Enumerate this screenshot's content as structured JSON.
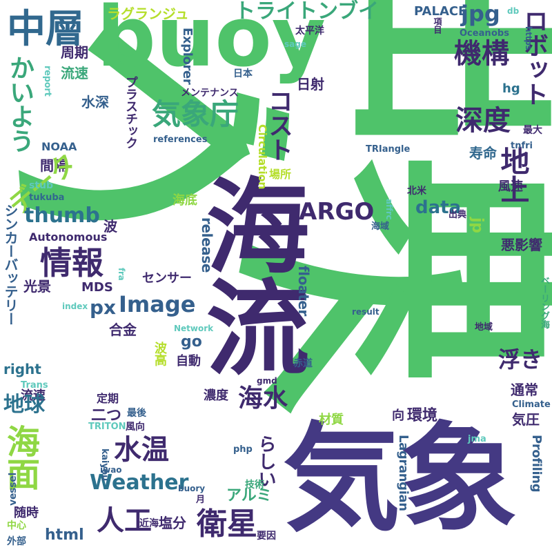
{
  "words": {
    "w_ブイ": {
      "text": "ブイ",
      "color": "#4fc36a",
      "rotate": 45
    },
    "w_海流": {
      "text": "海流",
      "color": "#3f2a6e",
      "rotate": 90
    },
    "w_出典": {
      "text": "出典",
      "color": "#4fc36a"
    },
    "w_気象": {
      "text": "気象",
      "color": "#443983"
    },
    "w_buoy": {
      "text": "buoy",
      "color": "#4fc36a"
    },
    "w_中層": {
      "text": "中層",
      "color": "#31688e"
    },
    "w_かいよう": {
      "text": "かいよう",
      "color": "#3aa77a"
    },
    "w_周期": {
      "text": "周期",
      "color": "#3f2a6e"
    },
    "w_流速": {
      "text": "流速",
      "color": "#3aa77a"
    },
    "w_report": {
      "text": "report",
      "color": "#5fc9bc"
    },
    "w_水深": {
      "text": "水深",
      "color": "#35608d"
    },
    "w_NOAA": {
      "text": "NOAA",
      "color": "#35608d"
    },
    "w_間隔": {
      "text": "間隔",
      "color": "#3f2a6e"
    },
    "w_データ": {
      "text": "データ",
      "color": "#8fd744"
    },
    "w_stub": {
      "text": "stub",
      "color": "#5fc9bc"
    },
    "w_tukuba": {
      "text": "tukuba",
      "color": "#31688e"
    },
    "w_シンカーバッテリー": {
      "text": "シンカーバッテリー",
      "color": "#35608d"
    },
    "w_海底": {
      "text": "海底",
      "color": "#8fd744"
    },
    "w_thumb": {
      "text": "thumb",
      "color": "#2c728e"
    },
    "w_Autonomous": {
      "text": "Autonomous",
      "color": "#3f2a6e"
    },
    "w_情報": {
      "text": "情報",
      "color": "#3f2a6e"
    },
    "w_光景": {
      "text": "光景",
      "color": "#3f2a6e"
    },
    "w_MDS": {
      "text": "MDS",
      "color": "#3f2a6e"
    },
    "w_px": {
      "text": "px",
      "color": "#35608d"
    },
    "w_index": {
      "text": "index",
      "color": "#5fc9bc"
    },
    "w_合金": {
      "text": "合金",
      "color": "#3f2a6e"
    },
    "w_right": {
      "text": "right",
      "color": "#2c728e"
    },
    "w_Trans": {
      "text": "Trans",
      "color": "#5fc9bc"
    },
    "w_流速2": {
      "text": "流速",
      "color": "#3f2a6e"
    },
    "w_地球": {
      "text": "地球",
      "color": "#2c728e"
    },
    "w_二つ": {
      "text": "二つ",
      "color": "#3f2a6e"
    },
    "w_定期": {
      "text": "定期",
      "color": "#3f2a6e"
    },
    "w_海面": {
      "text": "海面",
      "color": "#8fd744"
    },
    "w_TRITON": {
      "text": "TRITON",
      "color": "#5fc9bc"
    },
    "w_最後": {
      "text": "最後",
      "color": "#35608d"
    },
    "w_風向": {
      "text": "風向",
      "color": "#3f2a6e"
    },
    "w_水温": {
      "text": "水温",
      "color": "#3f2a6e"
    },
    "w_Weather": {
      "text": "Weather",
      "color": "#2c728e"
    },
    "w_vessel": {
      "text": "vessel",
      "color": "#35608d"
    },
    "w_kaiyou": {
      "text": "kaiyou",
      "color": "#35608d"
    },
    "w_iwao": {
      "text": "iwao",
      "color": "#35608d"
    },
    "w_随時": {
      "text": "随時",
      "color": "#3f2a6e"
    },
    "w_中心": {
      "text": "中心",
      "color": "#8fd744"
    },
    "w_外部": {
      "text": "外部",
      "color": "#35608d"
    },
    "w_人工": {
      "text": "人工",
      "color": "#3f2a6e"
    },
    "w_近海": {
      "text": "近海",
      "color": "#3f2a6e"
    },
    "w_塩分": {
      "text": "塩分",
      "color": "#3f2a6e"
    },
    "w_html": {
      "text": "html",
      "color": "#35608d"
    },
    "w_衛星": {
      "text": "衛星",
      "color": "#3f2a6e"
    },
    "w_アルミ": {
      "text": "アルミ",
      "color": "#3aa77a"
    },
    "w_ラグランジュ": {
      "text": "ラグランジュ",
      "color": "#b5de2b"
    },
    "w_トライトンブイ": {
      "text": "トライトンブイ",
      "color": "#3aa77a"
    },
    "w_PALACE": {
      "text": "PALACE",
      "color": "#35608d"
    },
    "w_jpg": {
      "text": "jpg",
      "color": "#35608d"
    },
    "w_db": {
      "text": "db",
      "color": "#5fc9bc"
    },
    "w_機構": {
      "text": "機構",
      "color": "#3f2a6e"
    },
    "w_地上": {
      "text": "地上",
      "color": "#3f2a6e"
    },
    "w_ロボット": {
      "text": "ロボット",
      "color": "#3f2a6e"
    },
    "w_Ocean": {
      "text": "Ocean",
      "color": "#35608d"
    },
    "w_obs": {
      "text": "obs",
      "color": "#35608d"
    },
    "w_https": {
      "text": "https",
      "color": "#35608d"
    },
    "w_項目": {
      "text": "項目",
      "color": "#3f2a6e"
    },
    "w_太平洋": {
      "text": "太平洋",
      "color": "#3f2a6e"
    },
    "w_sage": {
      "text": "sage",
      "color": "#5fc9bc"
    },
    "w_日本": {
      "text": "日本",
      "color": "#35608d"
    },
    "w_Explorer": {
      "text": "Explorer",
      "color": "#35608d"
    },
    "w_メンテナンス": {
      "text": "メンテナンス",
      "color": "#3f2a6e"
    },
    "w_プラスチック": {
      "text": "プラスチック",
      "color": "#3f2a6e"
    },
    "w_気象庁": {
      "text": "気象庁",
      "color": "#3aa77a"
    },
    "w_references": {
      "text": "references",
      "color": "#35608d"
    },
    "w_コスト": {
      "text": "コスト",
      "color": "#3f2a6e"
    },
    "w_日射": {
      "text": "日射",
      "color": "#3f2a6e"
    },
    "w_深度": {
      "text": "深度",
      "color": "#3f2a6e"
    },
    "w_hg": {
      "text": "hg",
      "color": "#2c728e"
    },
    "w_最大": {
      "text": "最大",
      "color": "#3f2a6e"
    },
    "w_TRIangle": {
      "text": "TRIangle",
      "color": "#35608d"
    },
    "w_寿命": {
      "text": "寿命",
      "color": "#31688e"
    },
    "w_tnfri": {
      "text": "tnfri",
      "color": "#35608d"
    },
    "w_Circulation": {
      "text": "Circulation",
      "color": "#b5de2b"
    },
    "w_場所": {
      "text": "場所",
      "color": "#b5de2b"
    },
    "w_ARGO": {
      "text": "ARGO",
      "color": "#3f2a6e"
    },
    "w_data": {
      "text": "data",
      "color": "#2c728e"
    },
    "w_北米": {
      "text": "北米",
      "color": "#3f2a6e"
    },
    "w_風速": {
      "text": "風速",
      "color": "#3f2a6e"
    },
    "w_release": {
      "text": "release",
      "color": "#35608d"
    },
    "w_jp": {
      "text": "jp",
      "color": "#8fd744"
    },
    "w_affrc": {
      "text": "affrc",
      "color": "#5fc9bc"
    },
    "w_海域": {
      "text": "海域",
      "color": "#35608d"
    },
    "w_出典2": {
      "text": "出典",
      "color": "#3f2a6e"
    },
    "w_悪影響": {
      "text": "悪影響",
      "color": "#3f2a6e"
    },
    "w_Image": {
      "text": "Image",
      "color": "#35608d"
    },
    "w_センサー": {
      "text": "センサー",
      "color": "#3f2a6e"
    },
    "w_floater": {
      "text": "floater",
      "color": "#35608d"
    },
    "w_fra": {
      "text": "fra",
      "color": "#5fc9bc"
    },
    "w_result": {
      "text": "result",
      "color": "#35608d"
    },
    "w_ベーリング海": {
      "text": "ベーリング海",
      "color": "#3aa77a"
    },
    "w_go": {
      "text": "go",
      "color": "#35608d"
    },
    "w_浮き": {
      "text": "浮き",
      "color": "#3f2a6e"
    },
    "w_地域": {
      "text": "地域",
      "color": "#3f2a6e"
    },
    "w_Network": {
      "text": "Network",
      "color": "#5fc9bc"
    },
    "w_波高": {
      "text": "波高",
      "color": "#b5de2b"
    },
    "w_自動": {
      "text": "自動",
      "color": "#3f2a6e"
    },
    "w_赤道": {
      "text": "赤道",
      "color": "#35608d"
    },
    "w_通常": {
      "text": "通常",
      "color": "#3f2a6e"
    },
    "w_濃度": {
      "text": "濃度",
      "color": "#3f2a6e"
    },
    "w_海水": {
      "text": "海水",
      "color": "#3f2a6e"
    },
    "w_gmd": {
      "text": "gmd",
      "color": "#3f2a6e"
    },
    "w_Climate": {
      "text": "Climate",
      "color": "#35608d"
    },
    "w_環境": {
      "text": "環境",
      "color": "#3f2a6e"
    },
    "w_向": {
      "text": "向",
      "color": "#3f2a6e"
    },
    "w_気圧": {
      "text": "気圧",
      "color": "#3f2a6e"
    },
    "w_材質": {
      "text": "材質",
      "color": "#8fd744"
    },
    "w_らしい": {
      "text": "らしい",
      "color": "#3f2a6e"
    },
    "w_php": {
      "text": "php",
      "color": "#35608d"
    },
    "w_jma": {
      "text": "jma",
      "color": "#5fc9bc"
    },
    "w_Lagrangian": {
      "text": "Lagrangian",
      "color": "#35608d"
    },
    "w_Profiling": {
      "text": "Profiling",
      "color": "#35608d"
    },
    "w_buory": {
      "text": "buory",
      "color": "#35608d"
    },
    "w_技術": {
      "text": "技術",
      "color": "#3aa77a"
    },
    "w_要因": {
      "text": "要因",
      "color": "#3f2a6e"
    },
    "w_月": {
      "text": "月",
      "color": "#3f2a6e"
    },
    "w_波": {
      "text": "波",
      "color": "#3f2a6e"
    }
  }
}
